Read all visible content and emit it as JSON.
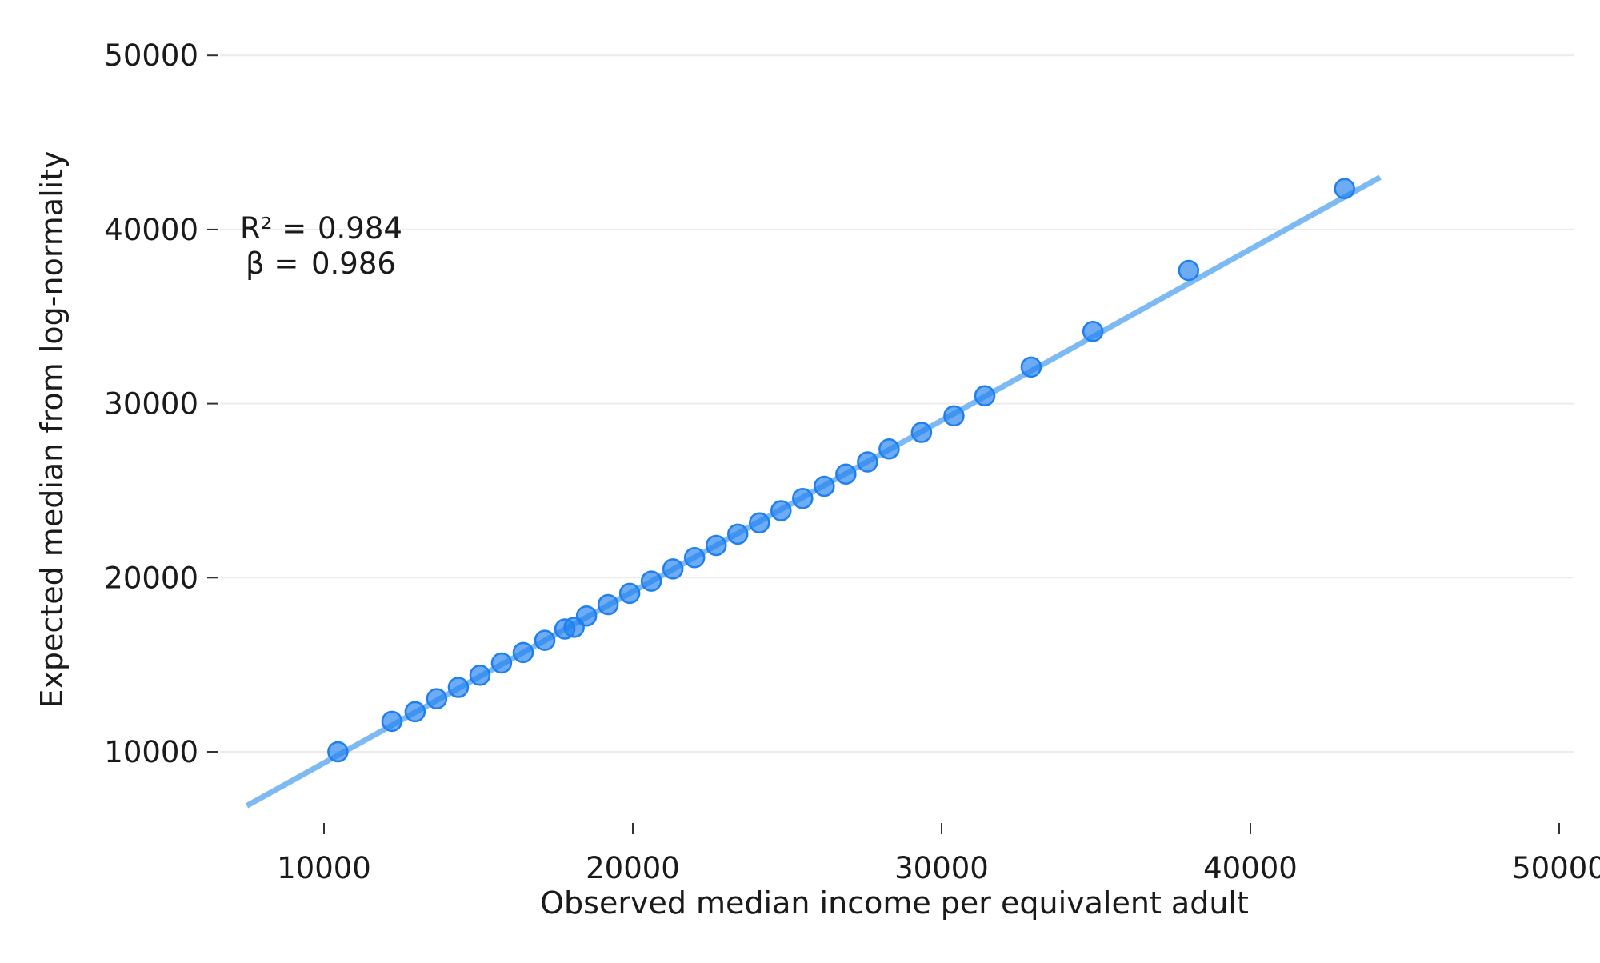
{
  "colors": {
    "points": "#1e7ff0",
    "fit_line": "#7db9f2",
    "grid": "#ececec"
  },
  "annotation": {
    "r2_label": "R² =",
    "r2_value": "0.984",
    "beta_label": "β =",
    "beta_value": "0.986"
  },
  "chart_data": {
    "type": "scatter",
    "title": "",
    "xlabel": "Observed median income per equivalent adult",
    "ylabel": "Expected median from log-normality",
    "xlim": [
      6500,
      50000
    ],
    "ylim": [
      5500,
      52000
    ],
    "x_ticks": [
      10000,
      20000,
      30000,
      40000,
      50000
    ],
    "y_ticks": [
      10000,
      20000,
      30000,
      40000,
      50000
    ],
    "grid": true,
    "legend": "none",
    "series": [
      {
        "points": [
          [
            10450,
            10000
          ],
          [
            12200,
            11750
          ],
          [
            12950,
            12300
          ],
          [
            13650,
            13050
          ],
          [
            14350,
            13700
          ],
          [
            15050,
            14400
          ],
          [
            15750,
            15100
          ],
          [
            16450,
            15700
          ],
          [
            17150,
            16400
          ],
          [
            17800,
            17050
          ],
          [
            18100,
            17150
          ],
          [
            18500,
            17800
          ],
          [
            19200,
            18450
          ],
          [
            19900,
            19100
          ],
          [
            20600,
            19800
          ],
          [
            21300,
            20500
          ],
          [
            22000,
            21150
          ],
          [
            22700,
            21850
          ],
          [
            23400,
            22500
          ],
          [
            24100,
            23150
          ],
          [
            24800,
            23850
          ],
          [
            25500,
            24550
          ],
          [
            26200,
            25250
          ],
          [
            26900,
            25950
          ],
          [
            27600,
            26650
          ],
          [
            28300,
            27400
          ],
          [
            29350,
            28350
          ],
          [
            30400,
            29300
          ],
          [
            31400,
            30450
          ],
          [
            32900,
            32100
          ],
          [
            34900,
            34150
          ],
          [
            38000,
            37650
          ],
          [
            43050,
            42350
          ]
        ]
      }
    ],
    "fit_line": {
      "x_start": 7500,
      "x_end": 44200,
      "y_start": 6900,
      "y_end": 43000
    }
  }
}
